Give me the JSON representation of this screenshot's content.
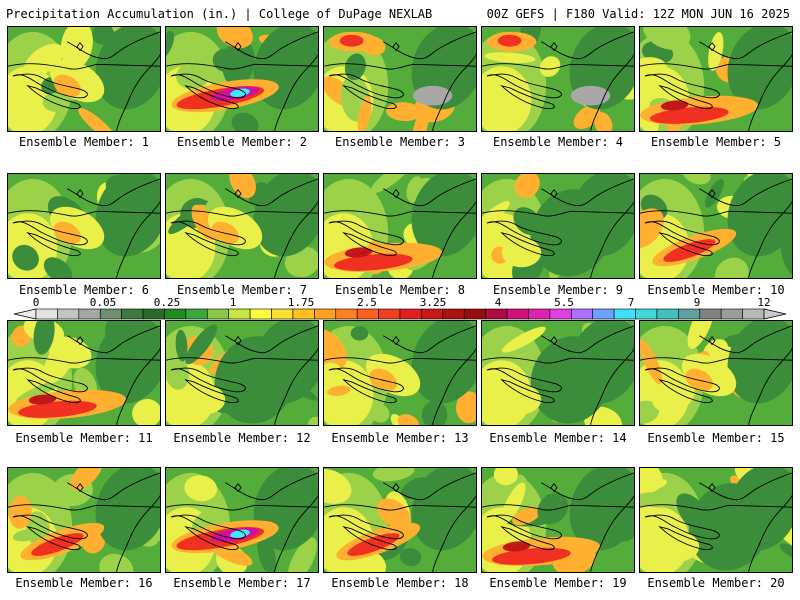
{
  "header": {
    "left_title": "Precipitation Accumulation (in.) | College of DuPage NEXLAB",
    "right_title": "00Z GEFS | F180 Valid: 12Z MON JUN 16 2025"
  },
  "members": [
    {
      "label": "Ensemble Member: 1",
      "theme": "dry"
    },
    {
      "label": "Ensemble Member: 2",
      "theme": "heavy-band"
    },
    {
      "label": "Ensemble Member: 3",
      "theme": "northeast-wet"
    },
    {
      "label": "Ensemble Member: 4",
      "theme": "northeast-wet"
    },
    {
      "label": "Ensemble Member: 5",
      "theme": "south-band"
    },
    {
      "label": "Ensemble Member: 6",
      "theme": "dry"
    },
    {
      "label": "Ensemble Member: 7",
      "theme": "dry"
    },
    {
      "label": "Ensemble Member: 8",
      "theme": "south-band"
    },
    {
      "label": "Ensemble Member: 9",
      "theme": "green"
    },
    {
      "label": "Ensemble Member: 10",
      "theme": "band"
    },
    {
      "label": "Ensemble Member: 11",
      "theme": "south-band"
    },
    {
      "label": "Ensemble Member: 12",
      "theme": "green"
    },
    {
      "label": "Ensemble Member: 13",
      "theme": "dry"
    },
    {
      "label": "Ensemble Member: 14",
      "theme": "green"
    },
    {
      "label": "Ensemble Member: 15",
      "theme": "dry"
    },
    {
      "label": "Ensemble Member: 16",
      "theme": "band"
    },
    {
      "label": "Ensemble Member: 17",
      "theme": "heavy-band"
    },
    {
      "label": "Ensemble Member: 18",
      "theme": "band"
    },
    {
      "label": "Ensemble Member: 19",
      "theme": "south-band"
    },
    {
      "label": "Ensemble Member: 20",
      "theme": "green"
    }
  ],
  "colorbar": {
    "tick_labels": [
      "0",
      "0.05",
      "0.25",
      "1",
      "1.75",
      "2.5",
      "3.25",
      "4",
      "5.5",
      "7",
      "9",
      "12"
    ],
    "colors": [
      "#e2e2e2",
      "#c4c4c4",
      "#a6a6a6",
      "#6f8f6f",
      "#3d7a3d",
      "#2a6b2a",
      "#1f8a1f",
      "#3aa83a",
      "#8ac84a",
      "#c8e640",
      "#ffff40",
      "#ffe030",
      "#ffc020",
      "#ffa020",
      "#ff8020",
      "#ff6020",
      "#f04020",
      "#e02020",
      "#c81818",
      "#b01010",
      "#980c0c",
      "#b00a40",
      "#d0107a",
      "#e020b0",
      "#e040e0",
      "#b070ff",
      "#6fa0ff",
      "#40e0ff",
      "#40d8d8",
      "#40c0c0",
      "#60a0a0",
      "#808080",
      "#9c9c9c",
      "#b8b8b8"
    ]
  },
  "palette": {
    "dark_green": "#3b8c3b",
    "mid_green": "#54ad3a",
    "light_green": "#9bd24a",
    "yellow": "#eaf04a",
    "orange": "#ffb030",
    "red": "#f03020",
    "dark_red": "#c01818",
    "magenta": "#d010a0",
    "cyan": "#40e8ff",
    "gray": "#a8a8a8"
  }
}
